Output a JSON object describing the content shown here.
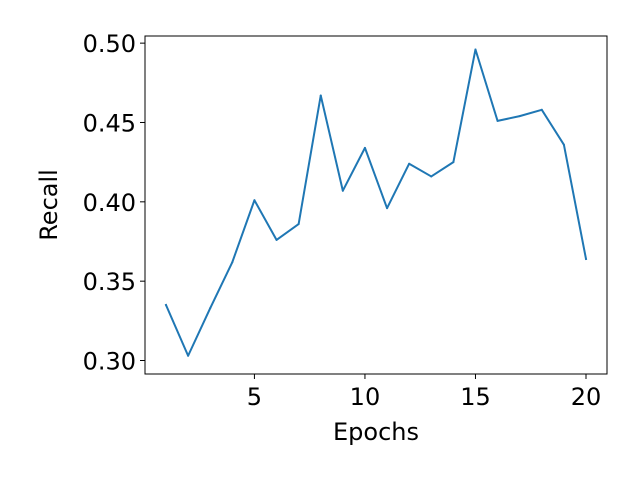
{
  "chart_data": {
    "type": "line",
    "title": "",
    "xlabel": "Epochs",
    "ylabel": "Recall",
    "xlim": [
      0.05,
      20.95
    ],
    "ylim": [
      0.2915,
      0.5045
    ],
    "xticks": [
      5,
      10,
      15,
      20
    ],
    "xtick_labels": [
      "5",
      "10",
      "15",
      "20"
    ],
    "yticks": [
      0.3,
      0.35,
      0.4,
      0.45,
      0.5
    ],
    "ytick_labels": [
      "0.30",
      "0.35",
      "0.40",
      "0.45",
      "0.50"
    ],
    "grid": false,
    "legend": "none",
    "line_color": "#1f77b4",
    "series": [
      {
        "x": [
          1,
          2,
          3,
          4,
          5,
          6,
          7,
          8,
          9,
          10,
          11,
          12,
          13,
          14,
          15,
          16,
          17,
          18,
          19,
          20
        ],
        "values": [
          0.335,
          0.303,
          0.333,
          0.362,
          0.401,
          0.376,
          0.386,
          0.467,
          0.407,
          0.434,
          0.396,
          0.424,
          0.416,
          0.425,
          0.496,
          0.451,
          0.454,
          0.458,
          0.436,
          0.364
        ]
      }
    ]
  }
}
